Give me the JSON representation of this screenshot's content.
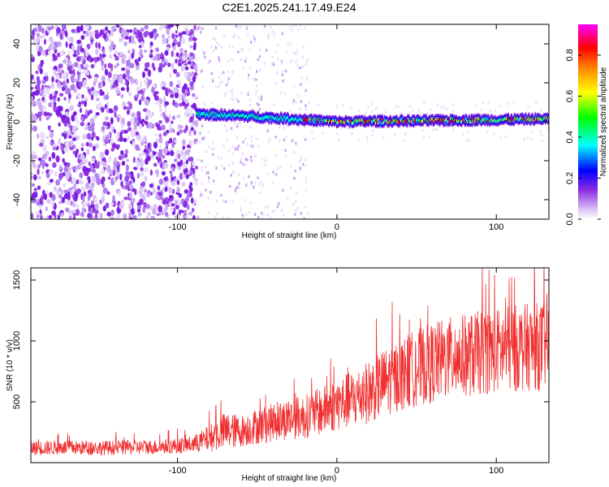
{
  "title": "C2E1.2025.241.17.49.E24",
  "chart_data": [
    {
      "type": "heatmap",
      "title": "C2E1.2025.241.17.49.E24",
      "xlabel": "Height of straight line (km)",
      "ylabel": "Frequency (Hz)",
      "xlim": [
        -192,
        133
      ],
      "ylim": [
        -50,
        50
      ],
      "xticks": [
        -100,
        0,
        100
      ],
      "xtick_labels": [
        "-100",
        "0",
        "100"
      ],
      "yticks": [
        -40,
        -20,
        0,
        20,
        40
      ],
      "ytick_labels": [
        "-40",
        "-20",
        "0",
        "20",
        "40"
      ],
      "signal_track": {
        "description": "narrow band near 0 Hz beginning at about -88 km",
        "x_start": -88,
        "x_end": 133,
        "frequency_hz": [
          [
            -88,
            4
          ],
          [
            -60,
            3
          ],
          [
            -40,
            2
          ],
          [
            -20,
            1
          ],
          [
            0,
            0
          ],
          [
            50,
            0.5
          ],
          [
            100,
            1
          ],
          [
            133,
            1.5
          ]
        ]
      },
      "noise_region_x": [
        -192,
        -88
      ],
      "colorbar": {
        "label": "Normalized spectral amplitude",
        "range": [
          0.0,
          0.95
        ],
        "ticks": [
          0.0,
          0.2,
          0.4,
          0.6,
          0.8
        ],
        "tick_labels": [
          "0.0",
          "0.2",
          "0.4",
          "0.6",
          "0.8"
        ],
        "colormap": [
          "#ffffff",
          "#8a2be2",
          "#0000ff",
          "#00ffff",
          "#00ff00",
          "#ffff00",
          "#ff8000",
          "#ff0000",
          "#ff00ff"
        ]
      }
    },
    {
      "type": "line",
      "xlabel": "Height of straight line (km)",
      "ylabel": "SNR (10 * v/v)",
      "xlim": [
        -192,
        133
      ],
      "ylim": [
        0,
        1600
      ],
      "xticks": [
        -100,
        0,
        100
      ],
      "xtick_labels": [
        "-100",
        "0",
        "100"
      ],
      "yticks": [
        500,
        1000,
        1500
      ],
      "ytick_labels": [
        "500",
        "1000",
        "1500"
      ],
      "color": "#f03030",
      "series": [
        {
          "name": "SNR",
          "x": [
            -192,
            -170,
            -150,
            -130,
            -110,
            -90,
            -80,
            -70,
            -60,
            -50,
            -40,
            -30,
            -20,
            -10,
            0,
            10,
            20,
            30,
            40,
            50,
            60,
            70,
            80,
            90,
            100,
            110,
            120,
            133
          ],
          "mean": [
            120,
            125,
            120,
            125,
            130,
            150,
            200,
            260,
            260,
            300,
            330,
            360,
            380,
            420,
            480,
            520,
            580,
            660,
            720,
            780,
            820,
            860,
            880,
            900,
            920,
            940,
            950,
            960
          ],
          "spread": [
            60,
            60,
            60,
            60,
            60,
            70,
            110,
            160,
            130,
            150,
            160,
            170,
            180,
            200,
            220,
            240,
            260,
            280,
            300,
            320,
            330,
            340,
            340,
            350,
            350,
            360,
            360,
            370
          ]
        }
      ]
    }
  ]
}
